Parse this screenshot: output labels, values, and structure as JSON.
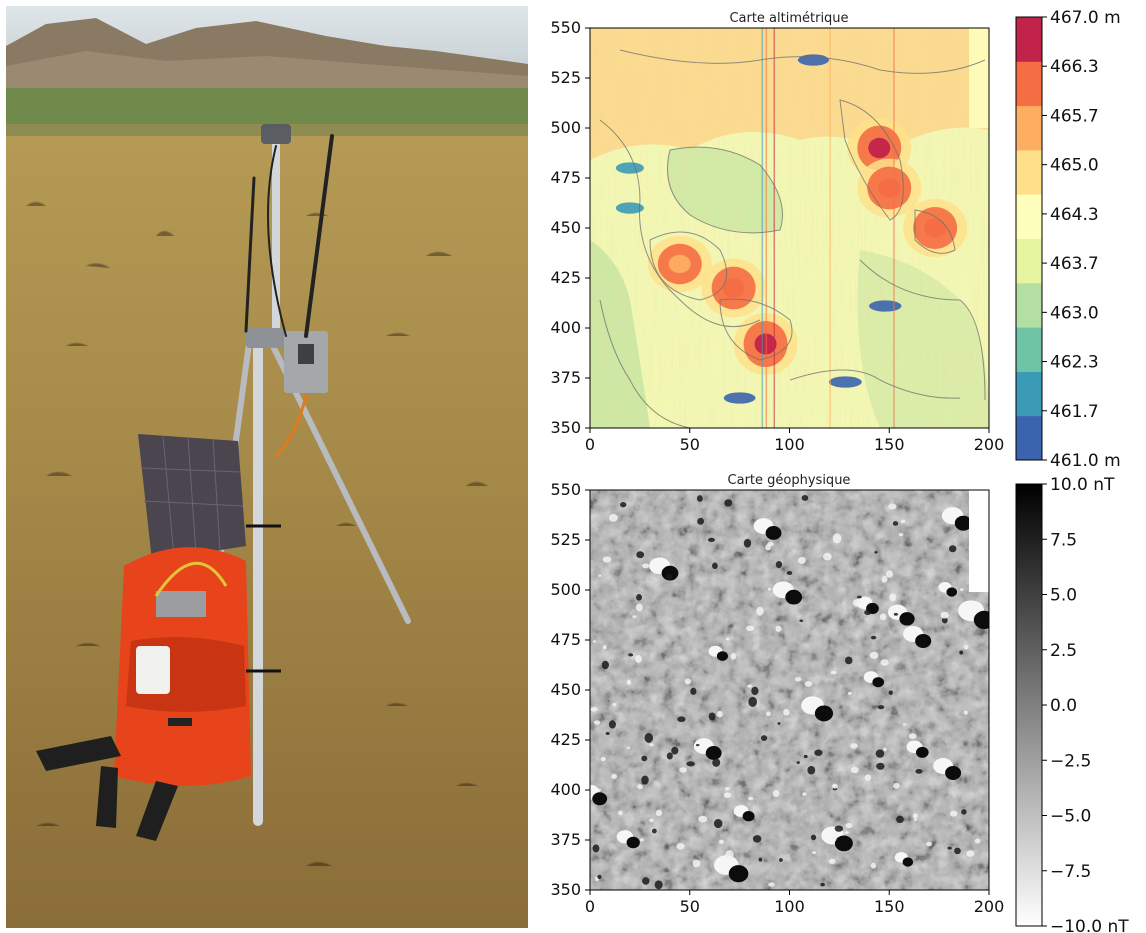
{
  "chart_data": [
    {
      "type": "heatmap",
      "title": "Carte altimétrique",
      "xlim": [
        0,
        200
      ],
      "ylim": [
        350,
        550
      ],
      "x_ticks": [
        "0",
        "50",
        "100",
        "150",
        "200"
      ],
      "y_ticks": [
        "550",
        "525",
        "500",
        "475",
        "450",
        "425",
        "400",
        "375",
        "350"
      ],
      "colorbar": {
        "min": 461.0,
        "max": 467.0,
        "unit": "m",
        "ticks": [
          "467.0 m",
          "466.3",
          "465.7",
          "465.0",
          "464.3",
          "463.7",
          "463.0",
          "462.3",
          "461.7",
          "461.0 m"
        ],
        "colors": [
          "#3a64ae",
          "#3b9ab6",
          "#6fc4a6",
          "#b3dfa3",
          "#e6f5a0",
          "#fefebd",
          "#fee08b",
          "#fdae61",
          "#f46d43",
          "#c2234b"
        ]
      },
      "features": [
        {
          "x": 145,
          "y": 490,
          "level": 466.5
        },
        {
          "x": 150,
          "y": 470,
          "level": 466.0
        },
        {
          "x": 173,
          "y": 450,
          "level": 465.8
        },
        {
          "x": 45,
          "y": 432,
          "level": 465.4
        },
        {
          "x": 72,
          "y": 420,
          "level": 466.0
        },
        {
          "x": 88,
          "y": 392,
          "level": 466.8
        },
        {
          "x": 20,
          "y": 480,
          "level": 462.0
        },
        {
          "x": 20,
          "y": 460,
          "level": 462.0
        },
        {
          "x": 112,
          "y": 534,
          "level": 461.5
        },
        {
          "x": 148,
          "y": 411,
          "level": 461.3
        },
        {
          "x": 128,
          "y": 373,
          "level": 461.2
        },
        {
          "x": 75,
          "y": 365,
          "level": 461.4
        }
      ]
    },
    {
      "type": "heatmap",
      "title": "Carte géophysique",
      "xlim": [
        0,
        200
      ],
      "ylim": [
        350,
        550
      ],
      "x_ticks": [
        "0",
        "50",
        "100",
        "150",
        "200"
      ],
      "y_ticks": [
        "550",
        "525",
        "500",
        "475",
        "450",
        "425",
        "400",
        "375",
        "350"
      ],
      "colorbar": {
        "min": -10.0,
        "max": 10.0,
        "unit": "nT",
        "ticks": [
          "10.0 nT",
          "7.5",
          "5.0",
          "2.5",
          "0.0",
          "−2.5",
          "−5.0",
          "−7.5",
          "−10.0 nT"
        ],
        "colors": [
          "#ffffff",
          "#000000"
        ]
      }
    }
  ]
}
